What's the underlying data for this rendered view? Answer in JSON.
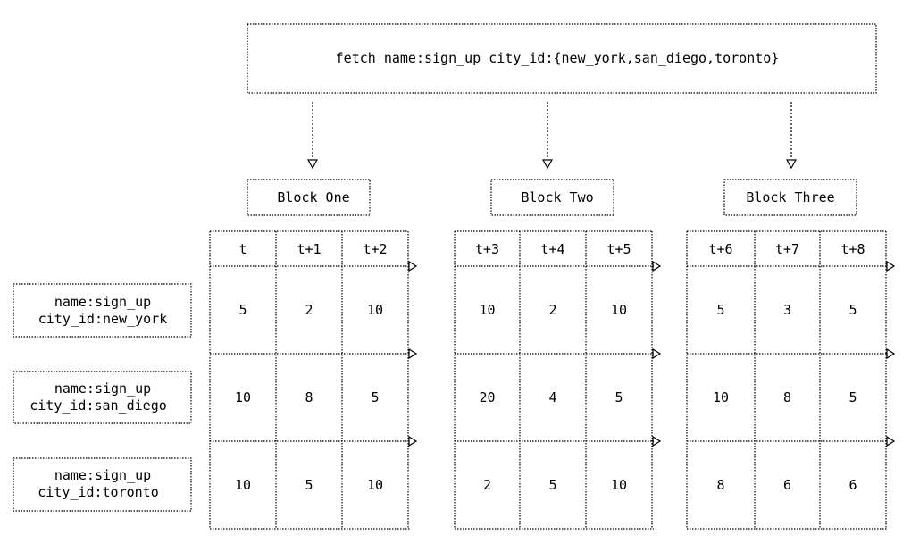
{
  "query": {
    "text": "fetch name:sign_up city_id:{new_york,san_diego,toronto}"
  },
  "blocks": [
    {
      "label": "Block One",
      "columns": [
        "t",
        "t+1",
        "t+2"
      ],
      "rows": [
        [
          "5",
          "2",
          "10"
        ],
        [
          "10",
          "8",
          "5"
        ],
        [
          "10",
          "5",
          "10"
        ]
      ]
    },
    {
      "label": "Block Two",
      "columns": [
        "t+3",
        "t+4",
        "t+5"
      ],
      "rows": [
        [
          "10",
          "2",
          "10"
        ],
        [
          "20",
          "4",
          "5"
        ],
        [
          "2",
          "5",
          "10"
        ]
      ]
    },
    {
      "label": "Block Three",
      "columns": [
        "t+6",
        "t+7",
        "t+8"
      ],
      "rows": [
        [
          "5",
          "3",
          "5"
        ],
        [
          "10",
          "8",
          "5"
        ],
        [
          "8",
          "6",
          "6"
        ]
      ]
    }
  ],
  "series": [
    {
      "line1": "name:sign_up",
      "line2": "city_id:new_york"
    },
    {
      "line1": "name:sign_up",
      "line2": "city_id:san_diego"
    },
    {
      "line1": "name:sign_up",
      "line2": "city_id:toronto"
    }
  ],
  "colors": {
    "background": "#ffffff",
    "stroke": "#000000",
    "text": "#000000"
  }
}
